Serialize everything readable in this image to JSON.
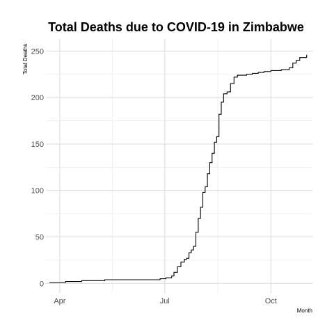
{
  "chart_data": {
    "type": "line",
    "title": "Total Deaths due to COVID-19 in Zimbabwe",
    "xlabel": "Month",
    "ylabel": "Total Deaths",
    "x_ticks": [
      {
        "date": "2020-04-01",
        "label": "Apr"
      },
      {
        "date": "2020-07-01",
        "label": "Jul"
      },
      {
        "date": "2020-10-01",
        "label": "Oct"
      }
    ],
    "y_ticks": [
      0,
      50,
      100,
      150,
      200,
      250
    ],
    "xlim": [
      "2020-03-20",
      "2020-11-06"
    ],
    "ylim": [
      -11,
      263
    ],
    "grid": true,
    "legend": "none",
    "line_color": "#000000",
    "series": [
      {
        "x": [
          "2020-03-23",
          "2020-04-01",
          "2020-04-06",
          "2020-04-20",
          "2020-05-10",
          "2020-06-01",
          "2020-06-20",
          "2020-06-27",
          "2020-07-02",
          "2020-07-07",
          "2020-07-09",
          "2020-07-12",
          "2020-07-15",
          "2020-07-18",
          "2020-07-20",
          "2020-07-22",
          "2020-07-24",
          "2020-07-26",
          "2020-07-28",
          "2020-07-30",
          "2020-08-01",
          "2020-08-03",
          "2020-08-05",
          "2020-08-07",
          "2020-08-09",
          "2020-08-11",
          "2020-08-13",
          "2020-08-15",
          "2020-08-17",
          "2020-08-19",
          "2020-08-21",
          "2020-08-24",
          "2020-08-27",
          "2020-08-30",
          "2020-09-02",
          "2020-09-05",
          "2020-09-10",
          "2020-09-15",
          "2020-09-20",
          "2020-09-25",
          "2020-10-01",
          "2020-10-10",
          "2020-10-17",
          "2020-10-20",
          "2020-10-23",
          "2020-10-26",
          "2020-10-29",
          "2020-11-01"
        ],
        "y": [
          1,
          1,
          2,
          3,
          4,
          4,
          4,
          5,
          6,
          8,
          12,
          18,
          23,
          26,
          27,
          33,
          36,
          40,
          55,
          70,
          82,
          98,
          104,
          118,
          130,
          140,
          152,
          158,
          182,
          195,
          204,
          206,
          215,
          222,
          224,
          224,
          225,
          226,
          227,
          228,
          229,
          230,
          232,
          237,
          240,
          243,
          243,
          246
        ]
      }
    ]
  }
}
